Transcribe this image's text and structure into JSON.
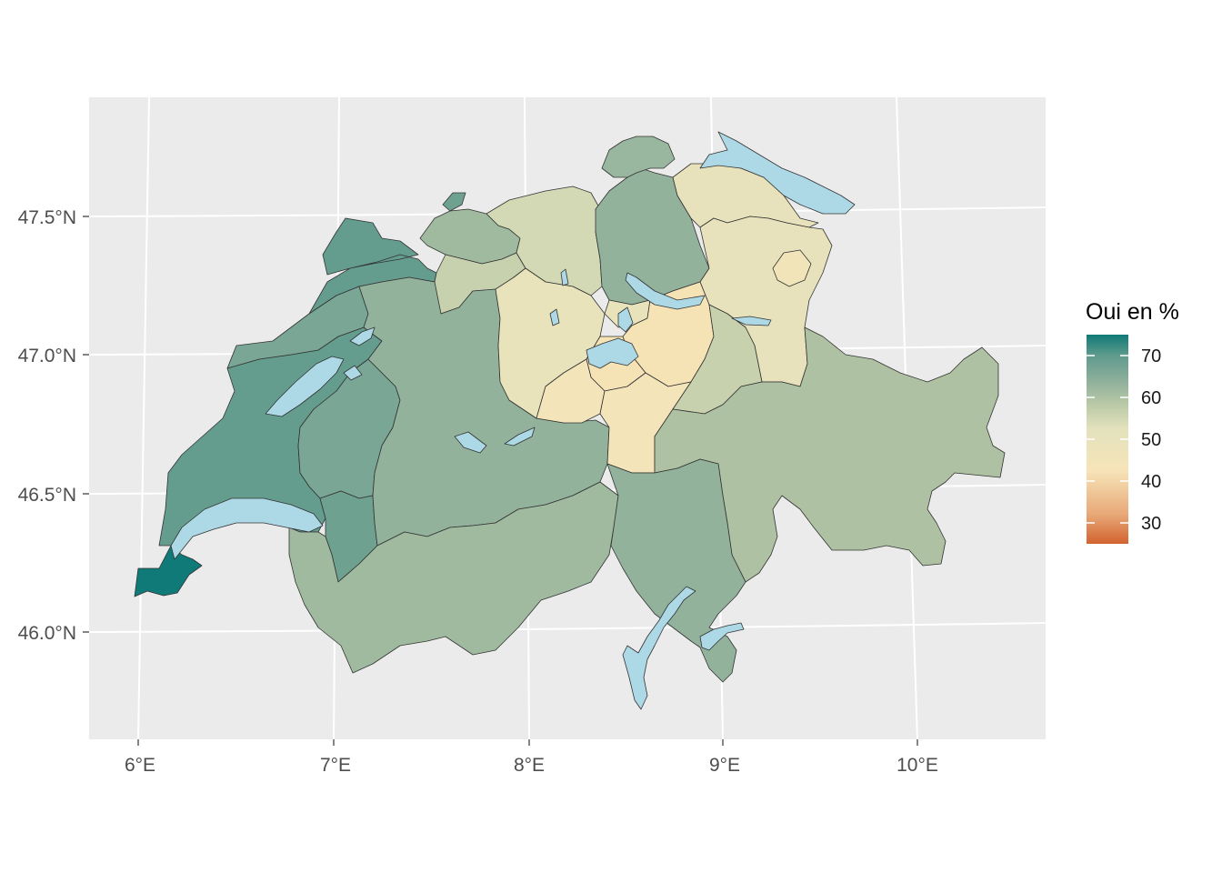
{
  "legend": {
    "title": "Oui en %",
    "min": 25,
    "max": 75,
    "ticks": [
      {
        "value": 70,
        "label": "70"
      },
      {
        "value": 60,
        "label": "60"
      },
      {
        "value": 50,
        "label": "50"
      },
      {
        "value": 40,
        "label": "40"
      },
      {
        "value": 30,
        "label": "30"
      }
    ],
    "color_stops": [
      "#d1622f",
      "#e8a877",
      "#f6e4b8",
      "#e3e2bd",
      "#b8c8a6",
      "#86ab99",
      "#5f9b8c",
      "#0f7a77"
    ]
  },
  "axes": {
    "x_labels": [
      "6°E",
      "7°E",
      "8°E",
      "9°E",
      "10°E"
    ],
    "y_labels": [
      "47.5°N",
      "47.0°N",
      "46.5°N",
      "46.0°N"
    ]
  },
  "colors": {
    "panel_background": "#ebebeb",
    "lake": "#add8e6"
  },
  "regions": [
    {
      "id": "geneva",
      "value": 76
    },
    {
      "id": "vaud",
      "value": 67
    },
    {
      "id": "jura",
      "value": 67
    },
    {
      "id": "neuchatel",
      "value": 63
    },
    {
      "id": "fribourg",
      "value": 63
    },
    {
      "id": "valais_east",
      "value": 65
    },
    {
      "id": "basel_stadt",
      "value": 65
    },
    {
      "id": "basel_land",
      "value": 57
    },
    {
      "id": "solothurn",
      "value": 51
    },
    {
      "id": "aargau",
      "value": 49
    },
    {
      "id": "bern",
      "value": 59
    },
    {
      "id": "valais",
      "value": 57
    },
    {
      "id": "zurich",
      "value": 59
    },
    {
      "id": "schaffhausen",
      "value": 58
    },
    {
      "id": "thurgau",
      "value": 45
    },
    {
      "id": "st_gallen",
      "value": 45
    },
    {
      "id": "appenzell",
      "value": 41
    },
    {
      "id": "lucerne",
      "value": 44
    },
    {
      "id": "zug",
      "value": 44
    },
    {
      "id": "schwyz",
      "value": 39
    },
    {
      "id": "nidwalden",
      "value": 39
    },
    {
      "id": "obwalden",
      "value": 40
    },
    {
      "id": "uri",
      "value": 40
    },
    {
      "id": "glarus",
      "value": 51
    },
    {
      "id": "graubunden",
      "value": 55
    },
    {
      "id": "ticino",
      "value": 59
    }
  ]
}
